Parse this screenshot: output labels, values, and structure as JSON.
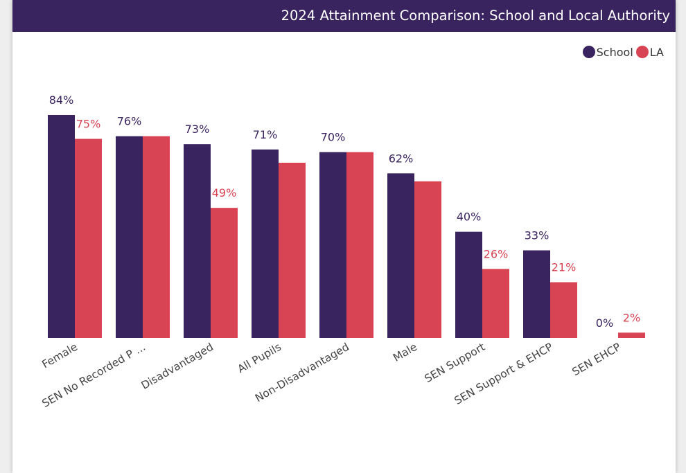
{
  "colors": {
    "school": "#3a2460",
    "la": "#d84453",
    "title_bar": "#3a2460"
  },
  "chart_data": {
    "type": "bar",
    "title": "2024 Attainment Comparison: School and Local Authority",
    "categories": [
      "Female",
      "SEN No Recorded P ...",
      "Disadvantaged",
      "All Pupils",
      "Non-Disadvantaged",
      "Male",
      "SEN Support",
      "SEN Support & EHCP",
      "SEN EHCP"
    ],
    "series": [
      {
        "name": "School",
        "values": [
          84,
          76,
          73,
          71,
          70,
          62,
          40,
          33,
          0
        ],
        "labels": [
          "84%",
          "76%",
          "73%",
          "71%",
          "70%",
          "62%",
          "40%",
          "33%",
          "0%"
        ]
      },
      {
        "name": "LA",
        "values": [
          75,
          76,
          49,
          66,
          70,
          59,
          26,
          21,
          2
        ],
        "labels": [
          "75%",
          "",
          "49%",
          "",
          "",
          "",
          "26%",
          "21%",
          "2%"
        ]
      }
    ],
    "ylim": [
      0,
      84
    ],
    "legend": "top-right",
    "grid": false,
    "xlabel": "",
    "ylabel": ""
  }
}
